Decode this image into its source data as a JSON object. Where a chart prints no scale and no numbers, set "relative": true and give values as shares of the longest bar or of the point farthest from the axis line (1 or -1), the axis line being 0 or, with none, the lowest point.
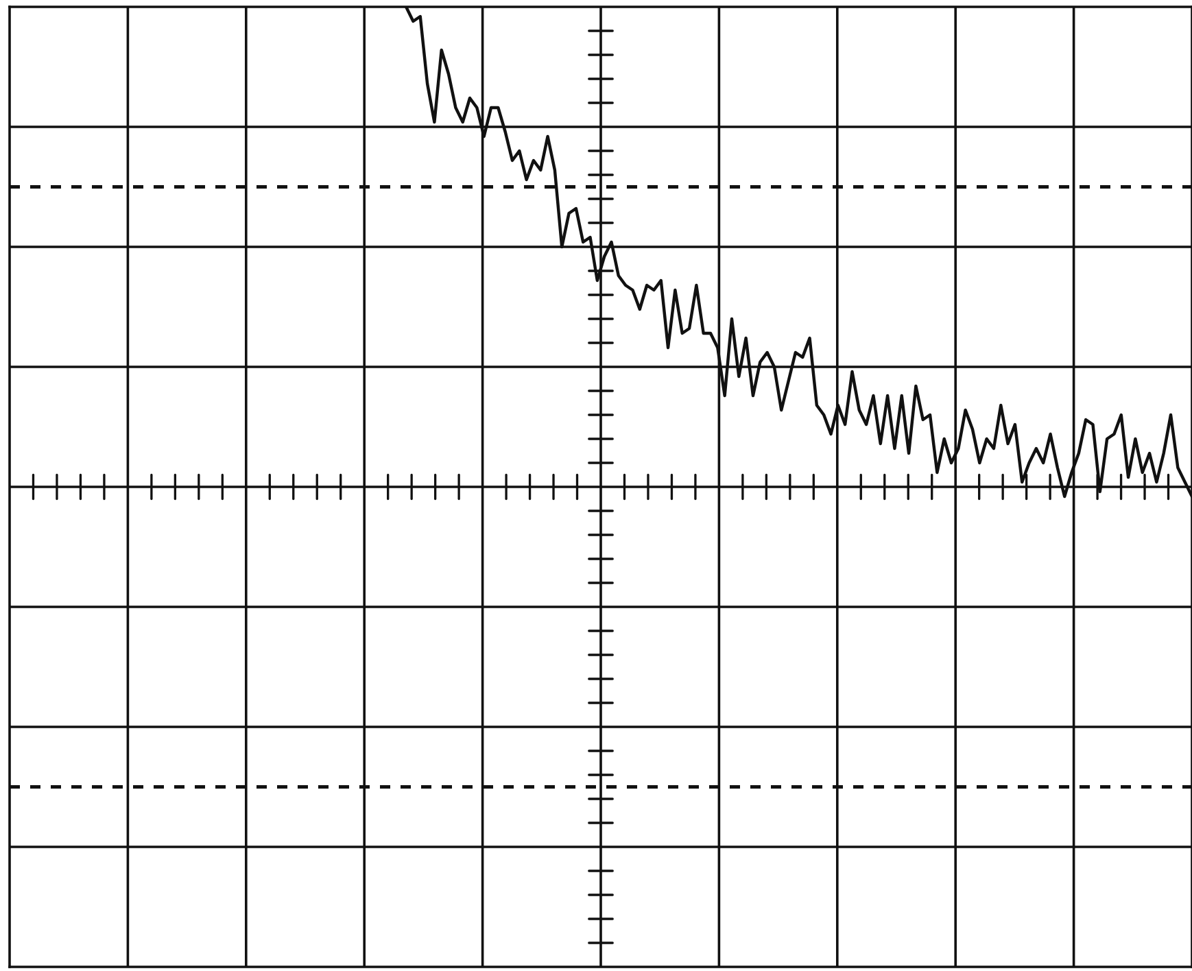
{
  "chart_data": {
    "type": "line",
    "relative": true,
    "grid": true,
    "ref_lines": [
      {
        "axis": "y",
        "value": 0.625,
        "line_style": "dashed"
      },
      {
        "axis": "y",
        "value": -0.625,
        "line_style": "dashed"
      }
    ],
    "marker": "none",
    "line_style": "solid",
    "categories": [
      null,
      null,
      null,
      null,
      null,
      null,
      null,
      null,
      null,
      null,
      null,
      null,
      null,
      null,
      null,
      null,
      null,
      null,
      null,
      null,
      null,
      null,
      null,
      null,
      null,
      null,
      null,
      null,
      null,
      null,
      null,
      null,
      null,
      null,
      null,
      null,
      null,
      null,
      null,
      null,
      null,
      null,
      null,
      null,
      null,
      null,
      null,
      null,
      null,
      null,
      null,
      null,
      null,
      null,
      null,
      null,
      null,
      null,
      null,
      null,
      null,
      null,
      null,
      null,
      null,
      null,
      null,
      null,
      null,
      null,
      null,
      null,
      null,
      null,
      null,
      null,
      null,
      null,
      null,
      null,
      null,
      null,
      null,
      null,
      null,
      null,
      null,
      null,
      null,
      null,
      null,
      null,
      null,
      null,
      null,
      null,
      null,
      null,
      null,
      null,
      null,
      null,
      null,
      null,
      null,
      null,
      null,
      null,
      null,
      null,
      null,
      null,
      null,
      null,
      null,
      null,
      null,
      null,
      null,
      null,
      null,
      null,
      null,
      null,
      null,
      null,
      null,
      null,
      null,
      null,
      null,
      null,
      null,
      null,
      null,
      null,
      null,
      null,
      null,
      null,
      null,
      null,
      null,
      null,
      null,
      null,
      null,
      null,
      null,
      null,
      null,
      null,
      null,
      null,
      null,
      null,
      null,
      null,
      null,
      null,
      null,
      null,
      null,
      null,
      null,
      null,
      null,
      null
    ],
    "series": [
      {
        "color": "#111111",
        "values": [
          null,
          null,
          null,
          null,
          null,
          null,
          null,
          null,
          null,
          null,
          null,
          null,
          null,
          null,
          null,
          null,
          null,
          null,
          null,
          null,
          null,
          null,
          null,
          null,
          null,
          null,
          null,
          null,
          null,
          null,
          null,
          null,
          null,
          null,
          null,
          null,
          null,
          null,
          null,
          null,
          null,
          null,
          null,
          null,
          null,
          null,
          null,
          null,
          null,
          null,
          null,
          null,
          null,
          null,
          null,
          null,
          1.0,
          0.97,
          0.98,
          0.84,
          0.76,
          0.91,
          0.86,
          0.79,
          0.76,
          0.81,
          0.79,
          0.73,
          0.79,
          0.79,
          0.74,
          0.68,
          0.7,
          0.64,
          0.68,
          0.66,
          0.73,
          0.66,
          0.5,
          0.57,
          0.58,
          0.51,
          0.52,
          0.43,
          0.48,
          0.51,
          0.44,
          0.42,
          0.41,
          0.37,
          0.42,
          0.41,
          0.43,
          0.29,
          0.41,
          0.32,
          0.33,
          0.42,
          0.32,
          0.32,
          0.29,
          0.19,
          0.35,
          0.23,
          0.31,
          0.19,
          0.26,
          0.28,
          0.25,
          0.16,
          0.22,
          0.28,
          0.27,
          0.31,
          0.17,
          0.15,
          0.11,
          0.17,
          0.13,
          0.24,
          0.16,
          0.13,
          0.19,
          0.09,
          0.19,
          0.08,
          0.19,
          0.07,
          0.21,
          0.14,
          0.15,
          0.03,
          0.1,
          0.05,
          0.08,
          0.16,
          0.12,
          0.05,
          0.1,
          0.08,
          0.17,
          0.09,
          0.13,
          0.01,
          0.05,
          0.08,
          0.05,
          0.11,
          0.04,
          -0.02,
          0.03,
          0.07,
          0.14,
          0.13,
          -0.01,
          0.1,
          0.11,
          0.15,
          0.02,
          0.1,
          0.03,
          0.07,
          0.01,
          0.07,
          0.15,
          0.04,
          0.01,
          -0.02
        ]
      }
    ]
  }
}
